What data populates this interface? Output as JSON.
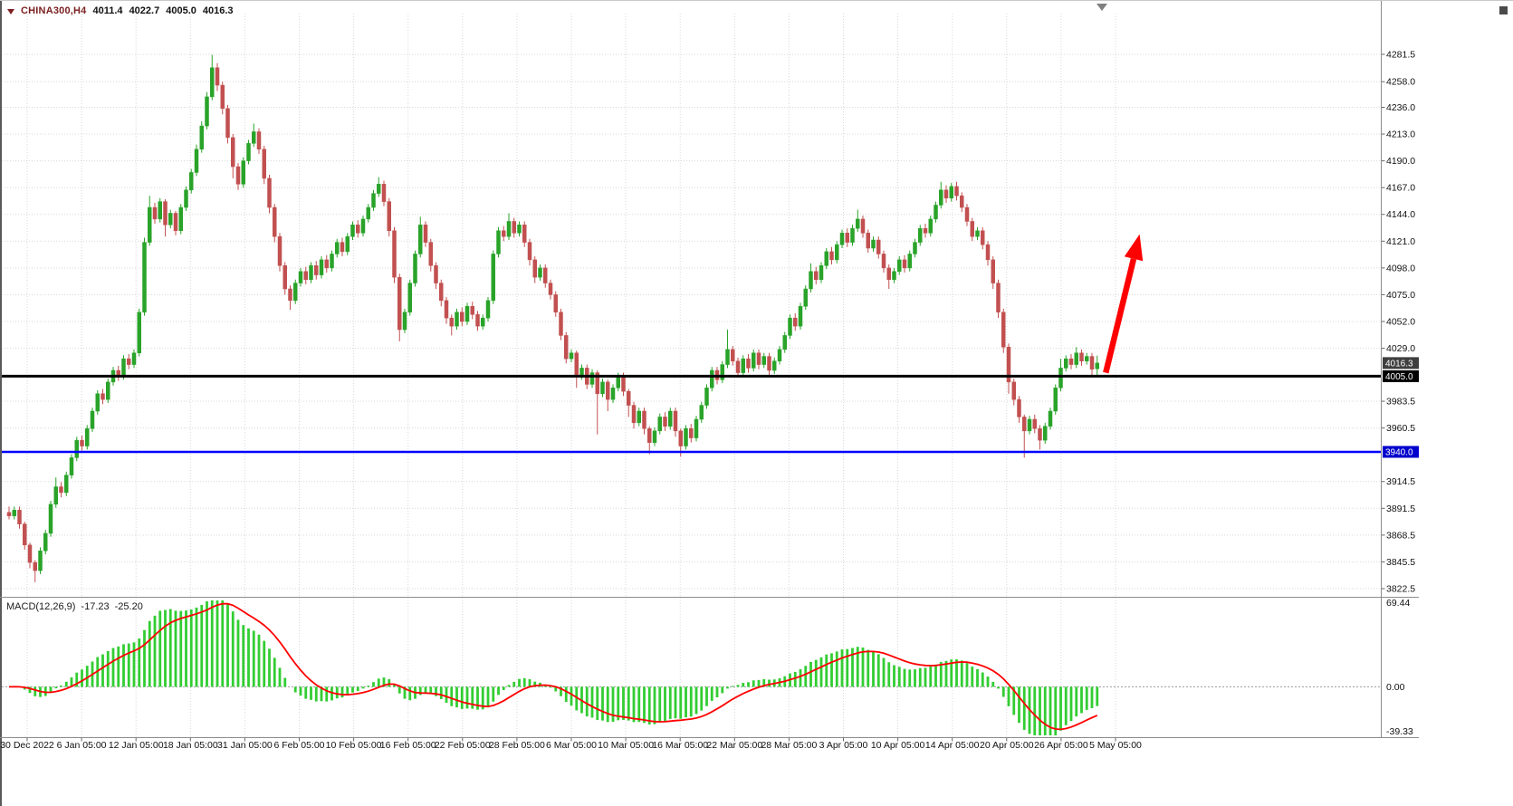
{
  "header": {
    "symbol": "CHINA300,H4",
    "open": "4011.4",
    "high": "4022.7",
    "low": "4005.0",
    "close": "4016.3"
  },
  "colors": {
    "up": "#29a329",
    "down": "#c25050",
    "grid": "#d8d8d8",
    "zero_line": "#9a9a9a",
    "macd_hist": "#32cd32",
    "macd_signal": "#ff0000",
    "arrow": "#ff0000",
    "axis_text": "#111111",
    "scale_border": "#8c8c8c",
    "corner_icon": "#4a4a4a",
    "shift_marker": "#808080"
  },
  "chart_data": {
    "type": "candlestick",
    "title": "CHINA300,H4",
    "symbol": "CHINA300",
    "timeframe": "H4",
    "price_axis": {
      "visible_min": 3822.5,
      "visible_max": 4281.5,
      "ticks": [
        "4281.5",
        "4258.0",
        "4236.0",
        "4213.0",
        "4190.0",
        "4167.0",
        "4144.0",
        "4121.0",
        "4098.0",
        "4075.0",
        "4052.0",
        "4029.0",
        "3983.5",
        "3960.5",
        "3914.5",
        "3891.5",
        "3868.5",
        "3845.5",
        "3822.5"
      ],
      "badges": [
        {
          "label": "4016.3",
          "price": 4016.3,
          "bg": "#3f3f3f"
        },
        {
          "label": "4005.0",
          "price": 4005.0,
          "bg": "#000000"
        },
        {
          "label": "3940.0",
          "price": 3940.0,
          "bg": "#0000cd"
        }
      ]
    },
    "time_axis": {
      "labels": [
        "30 Dec 2022",
        "6 Jan 05:00",
        "12 Jan 05:00",
        "18 Jan 05:00",
        "31 Jan 05:00",
        "6 Feb 05:00",
        "10 Feb 05:00",
        "16 Feb 05:00",
        "22 Feb 05:00",
        "28 Feb 05:00",
        "6 Mar 05:00",
        "10 Mar 05:00",
        "16 Mar 05:00",
        "22 Mar 05:00",
        "28 Mar 05:00",
        "3 Apr 05:00",
        "10 Apr 05:00",
        "14 Apr 05:00",
        "20 Apr 05:00",
        "26 Apr 05:00",
        "5 May 05:00"
      ]
    },
    "hlines": [
      {
        "price": 4005.0,
        "color": "#000000",
        "width": 3
      },
      {
        "price": 3940.0,
        "color": "#0000ff",
        "width": 2.5
      }
    ],
    "arrow": {
      "from": {
        "index": 211,
        "price": 4008
      },
      "to": {
        "index": 217.5,
        "price": 4127
      }
    },
    "macd": {
      "label": "MACD(12,26,9)",
      "macd_value": "-17.23",
      "signal_value": "-25.20",
      "params": [
        12,
        26,
        9
      ],
      "axis": {
        "max": 69.44,
        "min": -39.33,
        "labels": [
          {
            "text": "69.44",
            "value": 69.44
          },
          {
            "text": "0.00",
            "value": 0
          },
          {
            "text": "-39.33",
            "value": -39.33
          }
        ]
      }
    },
    "candles": [
      [
        3888,
        3893,
        3882,
        3885
      ],
      [
        3885,
        3893,
        3882,
        3890
      ],
      [
        3890,
        3893,
        3874,
        3878
      ],
      [
        3878,
        3880,
        3856,
        3860
      ],
      [
        3860,
        3862,
        3840,
        3845
      ],
      [
        3845,
        3847,
        3828,
        3838
      ],
      [
        3838,
        3858,
        3835,
        3855
      ],
      [
        3855,
        3873,
        3852,
        3870
      ],
      [
        3870,
        3898,
        3867,
        3895
      ],
      [
        3895,
        3918,
        3892,
        3910
      ],
      [
        3910,
        3914,
        3901,
        3905
      ],
      [
        3905,
        3923,
        3902,
        3920
      ],
      [
        3920,
        3938,
        3917,
        3935
      ],
      [
        3935,
        3953,
        3932,
        3950
      ],
      [
        3950,
        3954,
        3941,
        3945
      ],
      [
        3945,
        3963,
        3942,
        3960
      ],
      [
        3960,
        3978,
        3957,
        3975
      ],
      [
        3975,
        3993,
        3972,
        3990
      ],
      [
        3990,
        3994,
        3981,
        3985
      ],
      [
        3985,
        4003,
        3982,
        4000
      ],
      [
        4000,
        4013,
        3997,
        4010
      ],
      [
        4010,
        4014,
        4001,
        4005
      ],
      [
        4005,
        4023,
        4002,
        4020
      ],
      [
        4020,
        4024,
        4011,
        4015
      ],
      [
        4015,
        4028,
        4012,
        4025
      ],
      [
        4025,
        4063,
        4022,
        4060
      ],
      [
        4060,
        4124,
        4057,
        4120
      ],
      [
        4120,
        4160,
        4117,
        4150
      ],
      [
        4150,
        4154,
        4136,
        4140
      ],
      [
        4140,
        4158,
        4137,
        4155
      ],
      [
        4155,
        4157,
        4125,
        4135
      ],
      [
        4135,
        4148,
        4132,
        4145
      ],
      [
        4145,
        4147,
        4126,
        4130
      ],
      [
        4130,
        4153,
        4127,
        4150
      ],
      [
        4150,
        4168,
        4147,
        4165
      ],
      [
        4165,
        4183,
        4162,
        4180
      ],
      [
        4180,
        4204,
        4177,
        4200
      ],
      [
        4200,
        4224,
        4197,
        4220
      ],
      [
        4220,
        4249,
        4217,
        4245
      ],
      [
        4245,
        4281,
        4242,
        4270
      ],
      [
        4270,
        4274,
        4250,
        4255
      ],
      [
        4255,
        4258,
        4230,
        4235
      ],
      [
        4235,
        4238,
        4205,
        4210
      ],
      [
        4210,
        4213,
        4175,
        4185
      ],
      [
        4185,
        4188,
        4165,
        4170
      ],
      [
        4170,
        4193,
        4167,
        4190
      ],
      [
        4190,
        4208,
        4187,
        4205
      ],
      [
        4205,
        4222,
        4202,
        4215
      ],
      [
        4215,
        4218,
        4196,
        4200
      ],
      [
        4200,
        4203,
        4170,
        4175
      ],
      [
        4175,
        4178,
        4145,
        4150
      ],
      [
        4150,
        4153,
        4120,
        4125
      ],
      [
        4125,
        4128,
        4095,
        4100
      ],
      [
        4100,
        4103,
        4075,
        4080
      ],
      [
        4080,
        4083,
        4062,
        4070
      ],
      [
        4070,
        4088,
        4067,
        4085
      ],
      [
        4085,
        4098,
        4082,
        4095
      ],
      [
        4095,
        4099,
        4084,
        4088
      ],
      [
        4088,
        4103,
        4085,
        4100
      ],
      [
        4100,
        4104,
        4088,
        4092
      ],
      [
        4092,
        4108,
        4089,
        4105
      ],
      [
        4105,
        4109,
        4094,
        4098
      ],
      [
        4098,
        4113,
        4095,
        4110
      ],
      [
        4110,
        4123,
        4107,
        4120
      ],
      [
        4120,
        4124,
        4108,
        4112
      ],
      [
        4112,
        4128,
        4109,
        4125
      ],
      [
        4125,
        4138,
        4122,
        4135
      ],
      [
        4135,
        4139,
        4124,
        4128
      ],
      [
        4128,
        4143,
        4125,
        4140
      ],
      [
        4140,
        4153,
        4137,
        4150
      ],
      [
        4150,
        4165,
        4147,
        4162
      ],
      [
        4162,
        4176,
        4159,
        4170
      ],
      [
        4170,
        4173,
        4151,
        4155
      ],
      [
        4155,
        4158,
        4125,
        4130
      ],
      [
        4130,
        4133,
        4085,
        4090
      ],
      [
        4090,
        4093,
        4035,
        4045
      ],
      [
        4045,
        4063,
        4042,
        4060
      ],
      [
        4060,
        4088,
        4057,
        4085
      ],
      [
        4085,
        4113,
        4082,
        4110
      ],
      [
        4110,
        4142,
        4107,
        4135
      ],
      [
        4135,
        4138,
        4116,
        4120
      ],
      [
        4120,
        4123,
        4095,
        4100
      ],
      [
        4100,
        4103,
        4080,
        4085
      ],
      [
        4085,
        4088,
        4065,
        4070
      ],
      [
        4070,
        4073,
        4050,
        4055
      ],
      [
        4055,
        4058,
        4040,
        4048
      ],
      [
        4048,
        4063,
        4045,
        4060
      ],
      [
        4060,
        4064,
        4048,
        4052
      ],
      [
        4052,
        4068,
        4049,
        4065
      ],
      [
        4065,
        4069,
        4054,
        4058
      ],
      [
        4058,
        4061,
        4044,
        4048
      ],
      [
        4048,
        4058,
        4045,
        4055
      ],
      [
        4055,
        4073,
        4052,
        4070
      ],
      [
        4070,
        4113,
        4067,
        4110
      ],
      [
        4110,
        4133,
        4107,
        4130
      ],
      [
        4130,
        4134,
        4121,
        4125
      ],
      [
        4125,
        4145,
        4122,
        4138
      ],
      [
        4138,
        4141,
        4124,
        4128
      ],
      [
        4128,
        4138,
        4125,
        4135
      ],
      [
        4135,
        4138,
        4116,
        4120
      ],
      [
        4120,
        4123,
        4100,
        4105
      ],
      [
        4105,
        4108,
        4085,
        4090
      ],
      [
        4090,
        4101,
        4087,
        4098
      ],
      [
        4098,
        4101,
        4081,
        4085
      ],
      [
        4085,
        4088,
        4071,
        4075
      ],
      [
        4075,
        4078,
        4056,
        4060
      ],
      [
        4060,
        4063,
        4036,
        4040
      ],
      [
        4040,
        4043,
        4016,
        4020
      ],
      [
        4020,
        4028,
        4017,
        4025
      ],
      [
        4025,
        4027,
        3995,
        4005
      ],
      [
        4005,
        4015,
        4002,
        4012
      ],
      [
        4012,
        4015,
        3994,
        3998
      ],
      [
        3998,
        4011,
        3995,
        4008
      ],
      [
        4008,
        4010,
        3955,
        3990
      ],
      [
        3990,
        4003,
        3987,
        4000
      ],
      [
        4000,
        4002,
        3975,
        3985
      ],
      [
        3985,
        3998,
        3982,
        3995
      ],
      [
        3995,
        4008,
        3992,
        4005
      ],
      [
        4005,
        4008,
        3988,
        3992
      ],
      [
        3992,
        3994,
        3970,
        3980
      ],
      [
        3980,
        3983,
        3960,
        3965
      ],
      [
        3965,
        3978,
        3962,
        3975
      ],
      [
        3975,
        3978,
        3955,
        3960
      ],
      [
        3960,
        3962,
        3938,
        3948
      ],
      [
        3948,
        3961,
        3945,
        3958
      ],
      [
        3958,
        3973,
        3955,
        3970
      ],
      [
        3970,
        3974,
        3958,
        3962
      ],
      [
        3962,
        3978,
        3959,
        3975
      ],
      [
        3975,
        3978,
        3953,
        3958
      ],
      [
        3958,
        3960,
        3936,
        3945
      ],
      [
        3945,
        3963,
        3942,
        3960
      ],
      [
        3960,
        3964,
        3948,
        3952
      ],
      [
        3952,
        3971,
        3949,
        3968
      ],
      [
        3968,
        3983,
        3965,
        3980
      ],
      [
        3980,
        3998,
        3977,
        3995
      ],
      [
        3995,
        4013,
        3992,
        4010
      ],
      [
        4010,
        4013,
        3998,
        4002
      ],
      [
        4002,
        4018,
        3999,
        4015
      ],
      [
        4015,
        4045,
        4012,
        4028
      ],
      [
        4028,
        4031,
        4014,
        4018
      ],
      [
        4018,
        4021,
        4004,
        4008
      ],
      [
        4008,
        4023,
        4005,
        4020
      ],
      [
        4020,
        4024,
        4008,
        4012
      ],
      [
        4012,
        4028,
        4009,
        4025
      ],
      [
        4025,
        4028,
        4011,
        4015
      ],
      [
        4015,
        4025,
        4012,
        4022
      ],
      [
        4022,
        4025,
        4006,
        4010
      ],
      [
        4010,
        4021,
        4007,
        4018
      ],
      [
        4018,
        4031,
        4015,
        4028
      ],
      [
        4028,
        4043,
        4025,
        4040
      ],
      [
        4040,
        4058,
        4037,
        4055
      ],
      [
        4055,
        4059,
        4044,
        4048
      ],
      [
        4048,
        4068,
        4045,
        4065
      ],
      [
        4065,
        4083,
        4062,
        4080
      ],
      [
        4080,
        4102,
        4077,
        4095
      ],
      [
        4095,
        4099,
        4084,
        4088
      ],
      [
        4088,
        4103,
        4085,
        4100
      ],
      [
        4100,
        4115,
        4097,
        4112
      ],
      [
        4112,
        4116,
        4101,
        4105
      ],
      [
        4105,
        4121,
        4102,
        4118
      ],
      [
        4118,
        4131,
        4115,
        4128
      ],
      [
        4128,
        4132,
        4116,
        4120
      ],
      [
        4120,
        4135,
        4117,
        4132
      ],
      [
        4132,
        4148,
        4129,
        4140
      ],
      [
        4140,
        4143,
        4124,
        4128
      ],
      [
        4128,
        4131,
        4111,
        4115
      ],
      [
        4115,
        4125,
        4112,
        4122
      ],
      [
        4122,
        4125,
        4106,
        4110
      ],
      [
        4110,
        4113,
        4094,
        4098
      ],
      [
        4098,
        4101,
        4080,
        4088
      ],
      [
        4088,
        4098,
        4085,
        4095
      ],
      [
        4095,
        4108,
        4092,
        4105
      ],
      [
        4105,
        4109,
        4094,
        4098
      ],
      [
        4098,
        4113,
        4095,
        4110
      ],
      [
        4110,
        4123,
        4107,
        4120
      ],
      [
        4120,
        4135,
        4117,
        4132
      ],
      [
        4132,
        4136,
        4124,
        4128
      ],
      [
        4128,
        4143,
        4125,
        4140
      ],
      [
        4140,
        4155,
        4137,
        4152
      ],
      [
        4152,
        4172,
        4149,
        4165
      ],
      [
        4165,
        4169,
        4154,
        4158
      ],
      [
        4158,
        4171,
        4155,
        4168
      ],
      [
        4168,
        4172,
        4156,
        4160
      ],
      [
        4160,
        4163,
        4146,
        4150
      ],
      [
        4150,
        4153,
        4134,
        4138
      ],
      [
        4138,
        4141,
        4121,
        4125
      ],
      [
        4125,
        4133,
        4122,
        4130
      ],
      [
        4130,
        4133,
        4114,
        4118
      ],
      [
        4118,
        4121,
        4100,
        4105
      ],
      [
        4105,
        4108,
        4080,
        4085
      ],
      [
        4085,
        4088,
        4055,
        4060
      ],
      [
        4060,
        4063,
        4025,
        4030
      ],
      [
        4030,
        4033,
        3990,
        4000
      ],
      [
        4000,
        4003,
        3980,
        3985
      ],
      [
        3985,
        3988,
        3965,
        3970
      ],
      [
        3970,
        3972,
        3935,
        3958
      ],
      [
        3958,
        3971,
        3955,
        3968
      ],
      [
        3968,
        3972,
        3956,
        3960
      ],
      [
        3960,
        3963,
        3942,
        3950
      ],
      [
        3950,
        3965,
        3947,
        3962
      ],
      [
        3962,
        3978,
        3959,
        3975
      ],
      [
        3975,
        3998,
        3972,
        3995
      ],
      [
        3995,
        4020,
        3992,
        4012
      ],
      [
        4012,
        4023,
        4009,
        4020
      ],
      [
        4020,
        4024,
        4011,
        4015
      ],
      [
        4015,
        4030,
        4012,
        4025
      ],
      [
        4025,
        4028,
        4014,
        4018
      ],
      [
        4018,
        4025,
        4015,
        4022
      ],
      [
        4022,
        4025,
        4006,
        4011
      ],
      [
        4011.4,
        4022.7,
        4005.0,
        4016.3
      ]
    ]
  }
}
